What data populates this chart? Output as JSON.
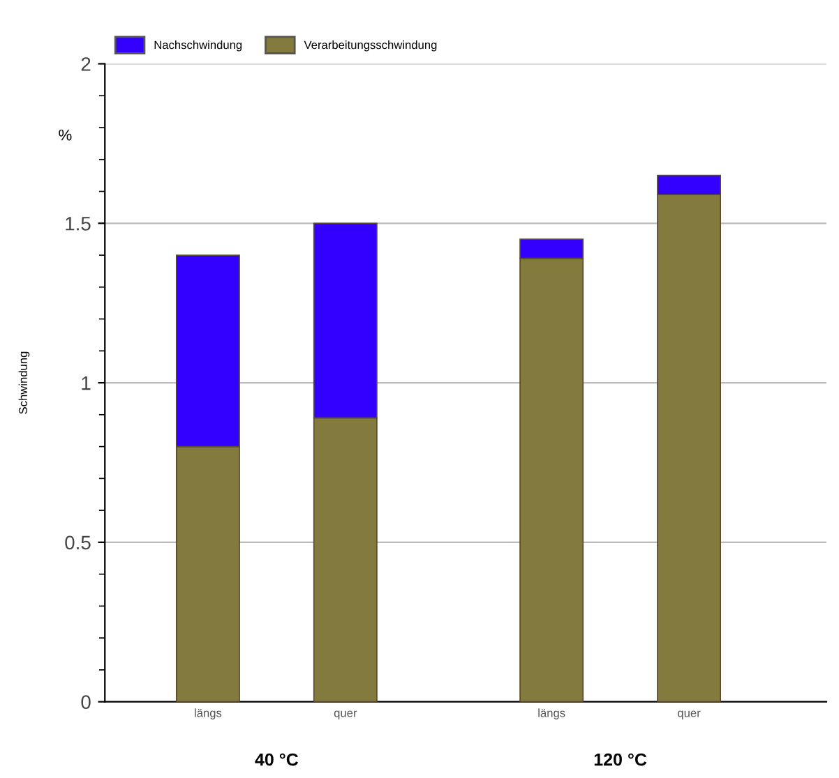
{
  "chart_data": {
    "type": "bar",
    "stacked": true,
    "ylabel": "Schwindung",
    "categories": [
      "längs",
      "quer",
      "längs",
      "quer"
    ],
    "series": [
      {
        "name": "Verarbeitungsschwindung",
        "color": "#837a3e",
        "values": [
          0.8,
          0.89,
          1.39,
          1.59
        ]
      },
      {
        "name": "Nachschwindung",
        "color": "#3300ff",
        "values": [
          0.6,
          0.61,
          0.06,
          0.06
        ]
      }
    ],
    "ylim": [
      0,
      2
    ],
    "yticks": [
      0,
      0.5,
      1,
      1.5,
      2
    ],
    "grid": "y",
    "legend": "top left",
    "annotations": [
      "%",
      "40 °C",
      "120 °C"
    ]
  }
}
